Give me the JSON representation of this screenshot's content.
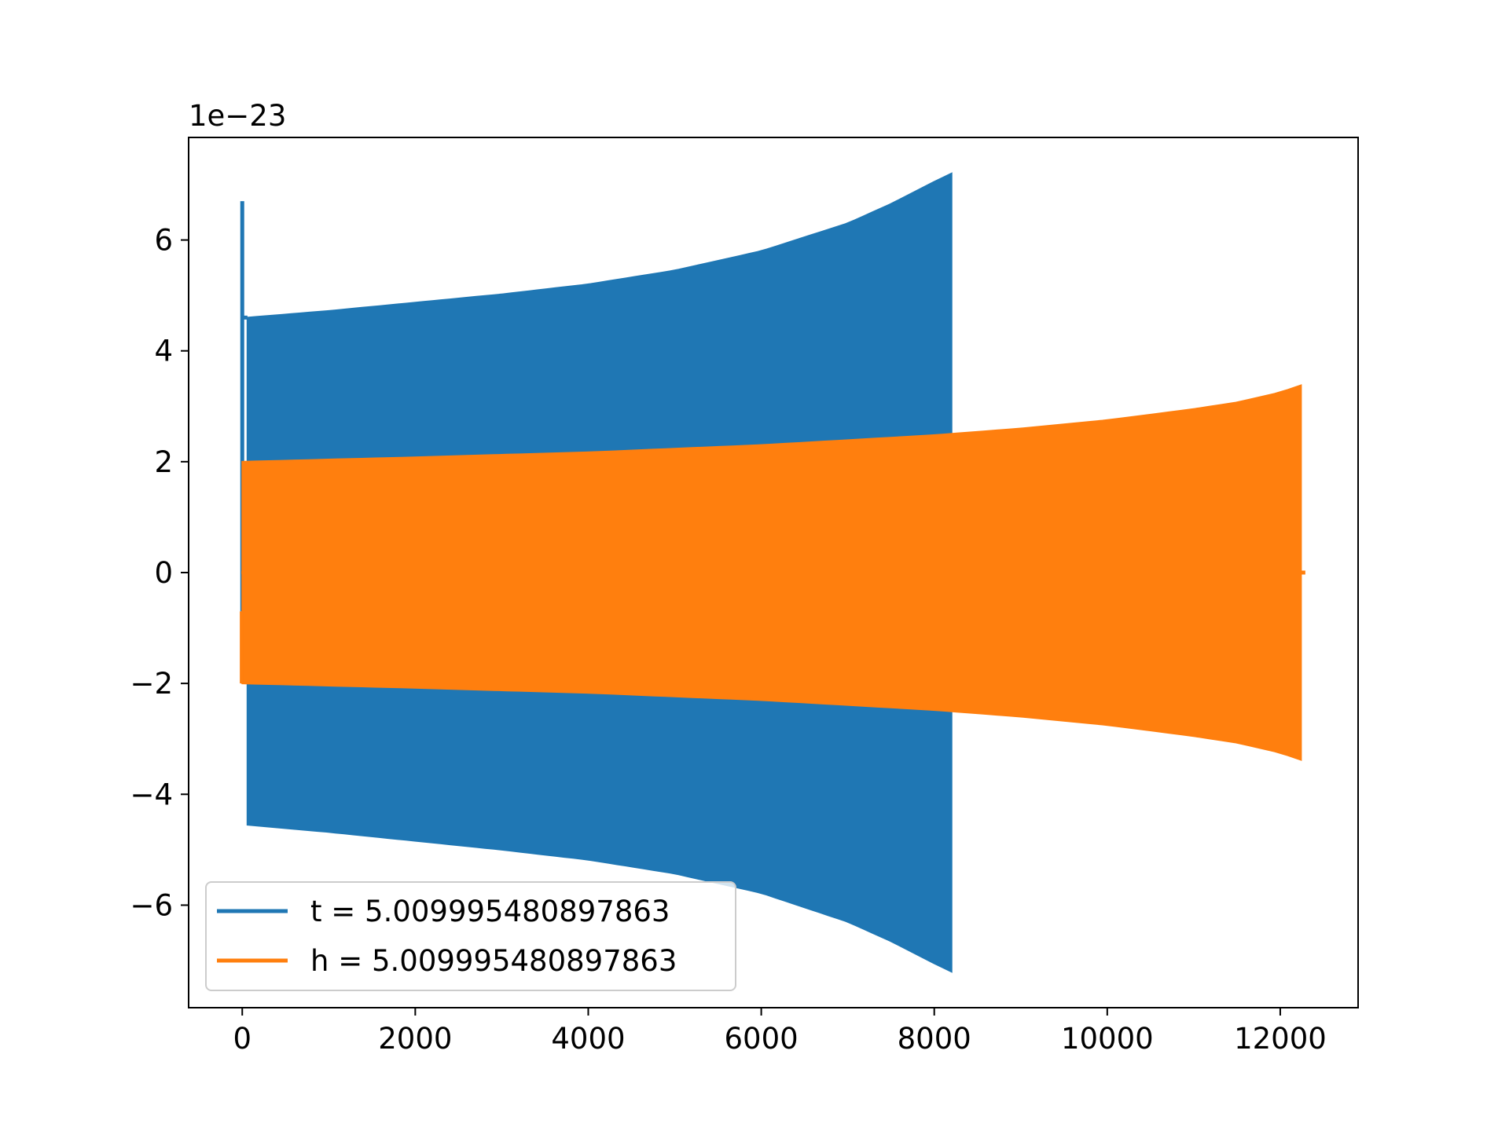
{
  "chart_data": {
    "type": "line",
    "title": "",
    "xlabel": "",
    "ylabel": "",
    "y_offset_label": "1e−23",
    "y_scale": 1e-23,
    "xlim": [
      -620,
      12900
    ],
    "ylim": [
      -7.85,
      7.85
    ],
    "x_ticks": [
      0,
      2000,
      4000,
      6000,
      8000,
      10000,
      12000
    ],
    "x_tick_labels": [
      "0",
      "2000",
      "4000",
      "6000",
      "8000",
      "10000",
      "12000"
    ],
    "y_ticks": [
      -6,
      -4,
      -2,
      0,
      2,
      4,
      6
    ],
    "y_tick_labels": [
      "−6",
      "−4",
      "−2",
      "0",
      "2",
      "4",
      "6"
    ],
    "grid": false,
    "legend_position": "lower-left",
    "series": [
      {
        "name": "t = 5.009995480897863",
        "color": "#1f77b4",
        "style": "dense-oscillation",
        "x_start": -10,
        "x_end": 8200,
        "spike": {
          "x": 0,
          "upper": 6.7,
          "lower": -0.7
        },
        "envelope": {
          "x": [
            60,
            1000,
            2000,
            3000,
            4000,
            5000,
            6000,
            7000,
            7500,
            8000,
            8200
          ],
          "upper": [
            4.6,
            4.72,
            4.87,
            5.02,
            5.2,
            5.45,
            5.8,
            6.3,
            6.65,
            7.05,
            7.2
          ],
          "lower": [
            -4.55,
            -4.68,
            -4.84,
            -5.0,
            -5.18,
            -5.43,
            -5.78,
            -6.3,
            -6.65,
            -7.05,
            -7.2
          ]
        }
      },
      {
        "name": "h = 5.009995480897863",
        "color": "#ff7f0e",
        "style": "dense-oscillation",
        "x_start": -10,
        "x_end": 12290,
        "tail": {
          "x_from": 12240,
          "x_to": 12290,
          "value": 0
        },
        "envelope": {
          "x": [
            0,
            2000,
            4000,
            6000,
            8000,
            9000,
            10000,
            11000,
            11500,
            12000,
            12240
          ],
          "upper": [
            2.0,
            2.08,
            2.17,
            2.3,
            2.48,
            2.6,
            2.75,
            2.95,
            3.07,
            3.25,
            3.38
          ],
          "lower": [
            -2.0,
            -2.08,
            -2.17,
            -2.3,
            -2.48,
            -2.6,
            -2.75,
            -2.95,
            -3.07,
            -3.25,
            -3.38
          ]
        }
      }
    ]
  }
}
